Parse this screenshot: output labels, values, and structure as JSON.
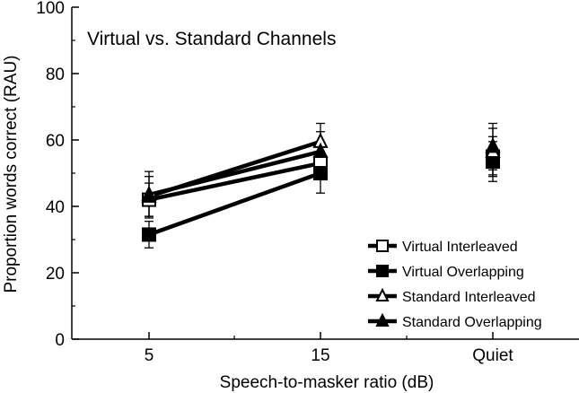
{
  "chart_data": {
    "type": "line",
    "title": "Virtual vs. Standard Channels",
    "xlabel": "Speech-to-masker ratio (dB)",
    "ylabel": "Proportion words correct (RAU)",
    "categories": [
      "5",
      "15",
      "Quiet"
    ],
    "ylim": [
      0,
      100
    ],
    "yticks": [
      "0",
      "20",
      "40",
      "60",
      "80",
      "100"
    ],
    "legend_position": "bottom-right",
    "series": [
      {
        "name": "Virtual Interleaved",
        "marker": "square-open",
        "values": [
          42,
          53,
          55
        ],
        "errors": [
          5,
          5,
          6
        ]
      },
      {
        "name": "Virtual Overlapping",
        "marker": "square-filled",
        "values": [
          31.5,
          50,
          53.5
        ],
        "errors": [
          4,
          6,
          6
        ]
      },
      {
        "name": "Standard Interleaved",
        "marker": "triangle-open",
        "values": [
          43,
          59.5,
          56.5
        ],
        "errors": [
          6,
          5.5,
          7
        ]
      },
      {
        "name": "Standard Overlapping",
        "marker": "triangle-filled",
        "values": [
          43.5,
          56.5,
          58
        ],
        "errors": [
          7,
          6,
          7
        ]
      }
    ]
  }
}
